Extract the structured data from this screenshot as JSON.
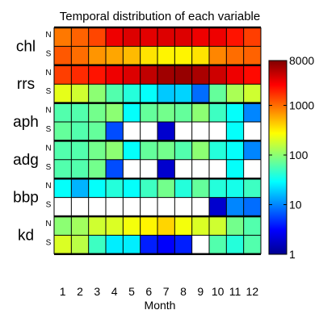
{
  "chart_data": {
    "type": "heatmap",
    "title": "Temporal distribution of each variable",
    "xlabel": "Month",
    "x_ticks": [
      "1",
      "2",
      "3",
      "4",
      "5",
      "6",
      "7",
      "8",
      "9",
      "10",
      "11",
      "12"
    ],
    "hemisphere_labels": [
      "N",
      "S"
    ],
    "variables": [
      "chl",
      "rrs",
      "aph",
      "adg",
      "bbp",
      "kd"
    ],
    "colorbar": {
      "scale": "log",
      "range": [
        1,
        8000
      ],
      "tick_values": [
        1,
        10,
        100,
        1000,
        8000
      ],
      "tick_labels": [
        "1",
        "10",
        "100",
        "1000",
        "8000"
      ],
      "colormap": "jet"
    },
    "missing_color": "#ffffff",
    "rows": [
      {
        "variable": "chl",
        "hemisphere": "N",
        "values": [
          900,
          1100,
          1400,
          3000,
          3500,
          3300,
          3500,
          3500,
          3000,
          3000,
          2200,
          1500
        ]
      },
      {
        "variable": "chl",
        "hemisphere": "S",
        "values": [
          1200,
          1000,
          700,
          600,
          500,
          350,
          300,
          300,
          350,
          800,
          1000,
          1100
        ]
      },
      {
        "variable": "rrs",
        "hemisphere": "N",
        "values": [
          1500,
          1800,
          2200,
          3000,
          3500,
          4500,
          6000,
          6500,
          5500,
          4000,
          3000,
          2400
        ]
      },
      {
        "variable": "rrs",
        "hemisphere": "S",
        "values": [
          220,
          180,
          100,
          60,
          40,
          30,
          18,
          20,
          8,
          70,
          130,
          180
        ]
      },
      {
        "variable": "aph",
        "hemisphere": "N",
        "values": [
          60,
          60,
          80,
          100,
          30,
          70,
          80,
          70,
          100,
          50,
          30,
          10
        ]
      },
      {
        "variable": "aph",
        "hemisphere": "S",
        "values": [
          70,
          60,
          70,
          6,
          null,
          null,
          2,
          null,
          null,
          null,
          30,
          null
        ]
      },
      {
        "variable": "adg",
        "hemisphere": "N",
        "values": [
          60,
          60,
          80,
          100,
          30,
          70,
          80,
          60,
          100,
          40,
          30,
          10
        ]
      },
      {
        "variable": "adg",
        "hemisphere": "S",
        "values": [
          60,
          60,
          80,
          6,
          null,
          null,
          2,
          null,
          null,
          null,
          30,
          null
        ]
      },
      {
        "variable": "bbp",
        "hemisphere": "N",
        "values": [
          30,
          15,
          30,
          40,
          30,
          50,
          80,
          40,
          70,
          40,
          35,
          50
        ]
      },
      {
        "variable": "bbp",
        "hemisphere": "S",
        "values": [
          null,
          null,
          null,
          null,
          null,
          null,
          null,
          null,
          null,
          2,
          10,
          8
        ]
      },
      {
        "variable": "kd",
        "hemisphere": "N",
        "values": [
          100,
          120,
          180,
          200,
          250,
          300,
          400,
          250,
          200,
          180,
          80,
          60
        ]
      },
      {
        "variable": "kd",
        "hemisphere": "S",
        "values": [
          200,
          150,
          50,
          25,
          25,
          4,
          3,
          4,
          null,
          60,
          40,
          60
        ]
      }
    ]
  }
}
